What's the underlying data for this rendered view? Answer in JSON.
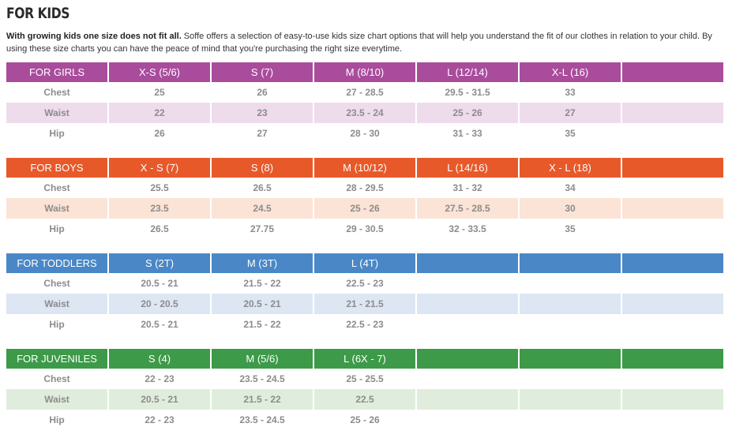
{
  "title": "FOR KIDS",
  "intro": {
    "bold": "With growing kids one size does not fit all.",
    "text": " Soffe offers a selection of easy-to-use kids size chart options that will help you understand the fit of our clothes in relation to your child. By using these size charts you can have the peace of mind that you're purchasing the right size everytime."
  },
  "colors": {
    "girls": "#a94c9c",
    "girls_band": "#eedcec",
    "boys": "#e8592a",
    "boys_band": "#fbe3d6",
    "toddlers": "#4a87c6",
    "toddlers_band": "#dde6f2",
    "juveniles": "#3c9a48",
    "juveniles_band": "#e0eddd"
  },
  "tables": [
    {
      "key": "girls",
      "header": [
        "FOR GIRLS",
        "X-S (5/6)",
        "S (7)",
        "M (8/10)",
        "L (12/14)",
        "X-L (16)",
        ""
      ],
      "rows": [
        [
          "Chest",
          "25",
          "26",
          "27 - 28.5",
          "29.5 - 31.5",
          "33",
          ""
        ],
        [
          "Waist",
          "22",
          "23",
          "23.5 - 24",
          "25 - 26",
          "27",
          ""
        ],
        [
          "Hip",
          "26",
          "27",
          "28 - 30",
          "31 - 33",
          "35",
          ""
        ]
      ]
    },
    {
      "key": "boys",
      "header": [
        "FOR BOYS",
        "X - S (7)",
        "S (8)",
        "M (10/12)",
        "L (14/16)",
        "X - L (18)",
        ""
      ],
      "rows": [
        [
          "Chest",
          "25.5",
          "26.5",
          "28 - 29.5",
          "31 - 32",
          "34",
          ""
        ],
        [
          "Waist",
          "23.5",
          "24.5",
          "25 - 26",
          "27.5 - 28.5",
          "30",
          ""
        ],
        [
          "Hip",
          "26.5",
          "27.75",
          "29 - 30.5",
          "32 - 33.5",
          "35",
          ""
        ]
      ]
    },
    {
      "key": "toddlers",
      "header": [
        "FOR TODDLERS",
        "S (2T)",
        "M (3T)",
        "L (4T)",
        "",
        "",
        ""
      ],
      "rows": [
        [
          "Chest",
          "20.5 - 21",
          "21.5 - 22",
          "22.5 - 23",
          "",
          "",
          ""
        ],
        [
          "Waist",
          "20 - 20.5",
          "20.5 - 21",
          "21 - 21.5",
          "",
          "",
          ""
        ],
        [
          "Hip",
          "20.5 - 21",
          "21.5 - 22",
          "22.5 - 23",
          "",
          "",
          ""
        ]
      ]
    },
    {
      "key": "juveniles",
      "header": [
        "FOR JUVENILES",
        "S (4)",
        "M (5/6)",
        "L (6X - 7)",
        "",
        "",
        ""
      ],
      "rows": [
        [
          "Chest",
          "22 - 23",
          "23.5 - 24.5",
          "25 - 25.5",
          "",
          "",
          ""
        ],
        [
          "Waist",
          "20.5 - 21",
          "21.5 - 22",
          "22.5",
          "",
          "",
          ""
        ],
        [
          "Hip",
          "22 - 23",
          "23.5 - 24.5",
          "25 - 26",
          "",
          "",
          ""
        ]
      ]
    }
  ]
}
